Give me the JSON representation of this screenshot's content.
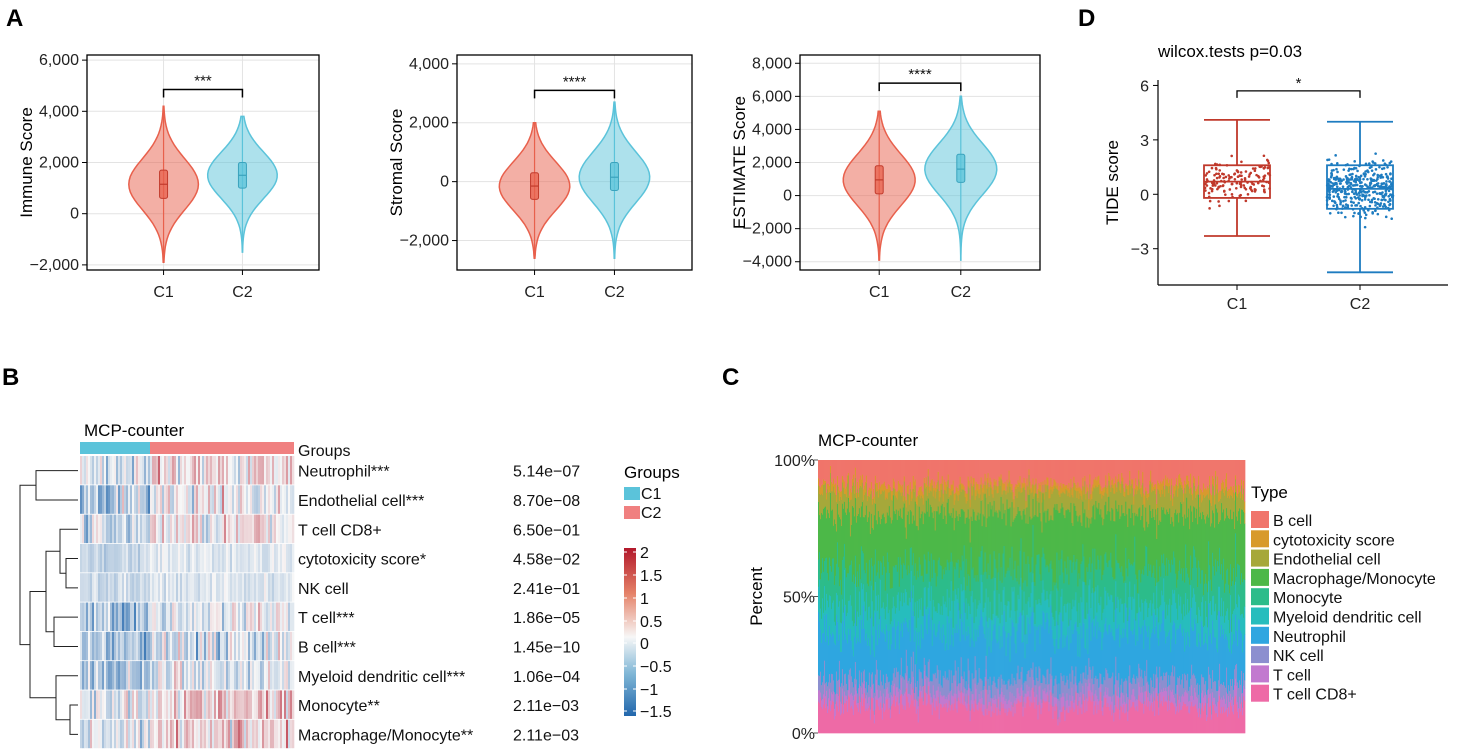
{
  "panels": {
    "a": "A",
    "b": "B",
    "c": "C",
    "d": "D"
  },
  "colors": {
    "c1": "#E8604C",
    "c2": "#5BC3DA",
    "c1dark": "#C0392B",
    "c2dark": "#1E7CC0",
    "bracket": "#000000"
  },
  "chart_data": [
    {
      "type": "violin",
      "id": "immune",
      "ylabel": "Immune Score",
      "categories": [
        "C1",
        "C2"
      ],
      "ylim": [
        -2200,
        6200
      ],
      "yticks": [
        -2000,
        0,
        2000,
        4000,
        6000
      ],
      "ytick_labels": [
        "−2,000",
        "0",
        "2,000",
        "4,000",
        "6,000"
      ],
      "bracket_y": 4850,
      "signif": "***",
      "groups": [
        {
          "name": "C1",
          "min": -1900,
          "max": 4200,
          "median": 1150,
          "q1": 600,
          "q3": 1700
        },
        {
          "name": "C2",
          "min": -1500,
          "max": 3800,
          "median": 1500,
          "q1": 1000,
          "q3": 2000
        }
      ]
    },
    {
      "type": "violin",
      "id": "stromal",
      "ylabel": "Stromal Score",
      "categories": [
        "C1",
        "C2"
      ],
      "ylim": [
        -3000,
        4300
      ],
      "yticks": [
        -2000,
        0,
        2000,
        4000
      ],
      "ytick_labels": [
        "−2,000",
        "0",
        "2,000",
        "4,000"
      ],
      "bracket_y": 3100,
      "signif": "****",
      "groups": [
        {
          "name": "C1",
          "min": -2600,
          "max": 2000,
          "median": -150,
          "q1": -600,
          "q3": 300
        },
        {
          "name": "C2",
          "min": -2600,
          "max": 2700,
          "median": 150,
          "q1": -300,
          "q3": 650
        }
      ]
    },
    {
      "type": "violin",
      "id": "estimate",
      "ylabel": "ESTIMATE Score",
      "categories": [
        "C1",
        "C2"
      ],
      "ylim": [
        -4500,
        8500
      ],
      "yticks": [
        -4000,
        -2000,
        0,
        2000,
        4000,
        6000,
        8000
      ],
      "ytick_labels": [
        "−4,000",
        "−2,000",
        "0",
        "2,000",
        "4,000",
        "6,000",
        "8,000"
      ],
      "bracket_y": 6800,
      "signif": "****",
      "groups": [
        {
          "name": "C1",
          "min": -3900,
          "max": 5100,
          "median": 950,
          "q1": 100,
          "q3": 1800
        },
        {
          "name": "C2",
          "min": -3900,
          "max": 6000,
          "median": 1600,
          "q1": 800,
          "q3": 2500
        }
      ]
    },
    {
      "type": "boxplot",
      "id": "tide",
      "title": "wilcox.tests p=0.03",
      "ylabel": "TIDE score",
      "categories": [
        "C1",
        "C2"
      ],
      "ylim": [
        -5,
        6.3
      ],
      "yticks": [
        -3,
        0,
        3,
        6
      ],
      "ytick_labels": [
        "−3",
        "0",
        "3",
        "6"
      ],
      "bracket_y": 5.7,
      "signif": "*",
      "groups": [
        {
          "name": "C1",
          "whisker_low": -2.3,
          "q1": -0.2,
          "median": 0.7,
          "q3": 1.6,
          "whisker_high": 4.1,
          "n": 150
        },
        {
          "name": "C2",
          "whisker_low": -4.3,
          "q1": -0.8,
          "median": 0.3,
          "q3": 1.6,
          "whisker_high": 4.0,
          "n": 400
        }
      ]
    },
    {
      "type": "heatmap",
      "id": "mcp_heatmap",
      "title": "MCP-counter",
      "annotation_label": "Groups",
      "legend_title": "Groups",
      "legend_items": [
        "C1",
        "C2"
      ],
      "color_scale": {
        "ticks": [
          "2",
          "1.5",
          "1",
          "0.5",
          "0",
          "−0.5",
          "−1",
          "−1.5"
        ],
        "low": "#2166AC",
        "mid": "#F7F7F7",
        "high": "#B2182B"
      },
      "rows": [
        {
          "label": "Neutrophil***",
          "p": "5.14e−07"
        },
        {
          "label": "Endothelial cell***",
          "p": "8.70e−08"
        },
        {
          "label": "T cell CD8+",
          "p": "6.50e−01"
        },
        {
          "label": "cytotoxicity score*",
          "p": "4.58e−02"
        },
        {
          "label": "NK cell",
          "p": "2.41e−01"
        },
        {
          "label": "T cell***",
          "p": "1.86e−05"
        },
        {
          "label": "B cell***",
          "p": "1.45e−10"
        },
        {
          "label": "Myeloid dendritic cell***",
          "p": "1.06e−04"
        },
        {
          "label": "Monocyte**",
          "p": "2.11e−03"
        },
        {
          "label": "Macrophage/Monocyte**",
          "p": "2.11e−03"
        }
      ]
    },
    {
      "type": "stacked_bar",
      "id": "mcp_bar",
      "title": "MCP-counter",
      "ylabel": "Percent",
      "yticks": [
        "0%",
        "50%",
        "100%"
      ],
      "legend_title": "Type",
      "types": [
        {
          "name": "B cell",
          "color": "#F0756B",
          "mean": 0.09
        },
        {
          "name": "cytotoxicity score",
          "color": "#D89A2C",
          "mean": 0.03
        },
        {
          "name": "Endothelial cell",
          "color": "#A6A83A",
          "mean": 0.08
        },
        {
          "name": "Macrophage/Monocyte",
          "color": "#4DB848",
          "mean": 0.2
        },
        {
          "name": "Monocyte",
          "color": "#2DBC8A",
          "mean": 0.13
        },
        {
          "name": "Myeloid dendritic cell",
          "color": "#27BDBD",
          "mean": 0.1
        },
        {
          "name": "Neutrophil",
          "color": "#2FA6E0",
          "mean": 0.17
        },
        {
          "name": "NK cell",
          "color": "#8C8FCF",
          "mean": 0.06
        },
        {
          "name": "T cell",
          "color": "#C27ACF",
          "mean": 0.04
        },
        {
          "name": "T cell CD8+",
          "color": "#EE6AA6",
          "mean": 0.1
        }
      ]
    }
  ]
}
